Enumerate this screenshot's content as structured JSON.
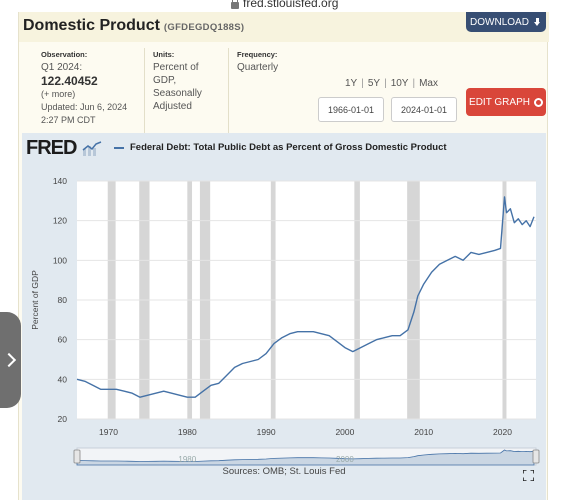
{
  "browser": {
    "url": "fred.stlouisfed.org"
  },
  "header": {
    "title": "Domestic Product",
    "series_id": "(GFDEGDQ188S)",
    "download_label": "DOWNLOAD"
  },
  "meta": {
    "observation_label": "Observation:",
    "observation_period": "Q1 2024:",
    "observation_value": "122.40452",
    "more_label": "(+ more)",
    "updated_label": "Updated:",
    "updated_date": "Jun 6, 2024",
    "updated_time": "2:27 PM CDT",
    "units_label": "Units:",
    "units_lines": [
      "Percent of",
      "GDP,",
      "Seasonally",
      "Adjusted"
    ],
    "frequency_label": "Frequency:",
    "frequency_value": "Quarterly"
  },
  "controls": {
    "ranges": [
      "1Y",
      "5Y",
      "10Y",
      "Max"
    ],
    "start_date": "1966-01-01",
    "end_date": "2024-01-01",
    "edit_graph_label": "EDIT GRAPH"
  },
  "graph": {
    "logo": "FRED",
    "sources": "Sources: OMB; St. Louis Fed",
    "colors": {
      "line": "#4572a7",
      "recession": "#d6d6d6",
      "background": "#e1e9f0",
      "navigator": "#a9bdd3"
    }
  },
  "chart_data": {
    "type": "line",
    "title": "",
    "legend": "Federal Debt: Total Public Debt as Percent of Gross Domestic Product",
    "ylabel": "Percent of GDP",
    "xlabel": "",
    "xlim": [
      1966,
      2024.25
    ],
    "ylim": [
      20,
      140
    ],
    "yticks": [
      20,
      40,
      60,
      80,
      100,
      120,
      140
    ],
    "xticks": [
      1970,
      1980,
      1990,
      2000,
      2010,
      2020
    ],
    "navigator_labels": [
      "1980",
      "2000"
    ],
    "recessions": [
      [
        1969.9,
        1970.9
      ],
      [
        1973.9,
        1975.2
      ],
      [
        1980.0,
        1980.6
      ],
      [
        1981.6,
        1982.9
      ],
      [
        1990.6,
        1991.2
      ],
      [
        2001.2,
        2001.9
      ],
      [
        2007.9,
        2009.5
      ],
      [
        2020.0,
        2020.5
      ]
    ],
    "series": [
      {
        "name": "Federal Debt: Total Public Debt as Percent of Gross Domestic Product",
        "x": [
          1966,
          1967,
          1968,
          1969,
          1970,
          1971,
          1972,
          1973,
          1974,
          1975,
          1976,
          1977,
          1978,
          1979,
          1980,
          1981,
          1982,
          1983,
          1984,
          1985,
          1986,
          1987,
          1988,
          1989,
          1990,
          1991,
          1992,
          1993,
          1994,
          1995,
          1996,
          1997,
          1998,
          1999,
          2000,
          2001,
          2002,
          2003,
          2004,
          2005,
          2006,
          2007,
          2008,
          2008.75,
          2009.25,
          2010,
          2011,
          2012,
          2013,
          2014,
          2015,
          2016,
          2017,
          2018,
          2019,
          2019.75,
          2020.25,
          2020.5,
          2021,
          2021.5,
          2022,
          2022.5,
          2023,
          2023.5,
          2024
        ],
        "y": [
          40,
          39,
          37,
          35,
          35,
          35,
          34,
          33,
          31,
          32,
          33,
          34,
          33,
          32,
          31,
          31,
          34,
          37,
          38,
          42,
          46,
          48,
          49,
          50,
          53,
          58,
          61,
          63,
          64,
          64,
          64,
          63,
          62,
          59,
          56,
          54,
          56,
          58,
          60,
          61,
          62,
          62,
          65,
          74,
          82,
          88,
          94,
          98,
          100,
          102,
          100,
          104,
          103,
          104,
          105,
          106,
          132,
          124,
          126,
          119,
          121,
          118,
          120,
          117,
          122
        ]
      }
    ]
  }
}
